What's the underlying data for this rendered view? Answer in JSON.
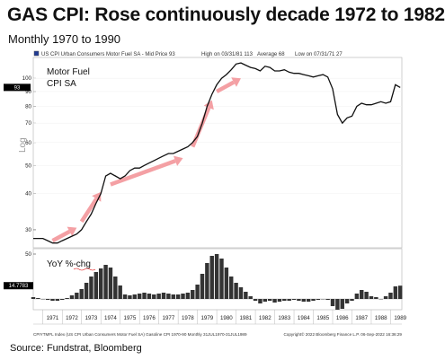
{
  "title": "GAS CPI: Rose continuously decade 1972 to 1982",
  "subtitle": "Monthly 1970 to 1990",
  "source": "Source: Fundstrat, Bloomberg",
  "header": {
    "series": "US CPI Urban Consumers Motor Fuel SA - Mid Price 93",
    "high": "High on 03/31/81 113",
    "average": "Average 68",
    "low": "Low on 07/31/71 27"
  },
  "footer": {
    "left": "CPIYTMFL Index (US CPI Urban Consumers Motor Fuel SA) Gasoline CPI 1970-90 Monthly 31JUL1970-31JUL1989",
    "right": "Copyright© 2022 Bloomberg Finance L.P.      06-Sep-2022 16:36:29"
  },
  "colors": {
    "line": "#111111",
    "arrow": "#f4a0a4",
    "header_square": "#1f3a93",
    "badge": "#000000"
  },
  "chart_data": [
    {
      "type": "line",
      "panel_label": [
        "Motor Fuel",
        "CPI SA"
      ],
      "ylabel": "Log",
      "log_scale": true,
      "ylim": [
        26,
        118
      ],
      "yticks": [
        30,
        40,
        50,
        60,
        70,
        80,
        90,
        100
      ],
      "last_value_badge": "93",
      "x": [
        "1970-07",
        "1970-10",
        "1971-01",
        "1971-04",
        "1971-07",
        "1971-10",
        "1972-01",
        "1972-04",
        "1972-07",
        "1972-10",
        "1973-01",
        "1973-04",
        "1973-07",
        "1973-10",
        "1974-01",
        "1974-04",
        "1974-07",
        "1974-10",
        "1975-01",
        "1975-04",
        "1975-07",
        "1975-10",
        "1976-01",
        "1976-04",
        "1976-07",
        "1976-10",
        "1977-01",
        "1977-04",
        "1977-07",
        "1977-10",
        "1978-01",
        "1978-04",
        "1978-07",
        "1978-10",
        "1979-01",
        "1979-04",
        "1979-07",
        "1979-10",
        "1980-01",
        "1980-04",
        "1980-07",
        "1980-10",
        "1981-01",
        "1981-04",
        "1981-07",
        "1981-10",
        "1982-01",
        "1982-04",
        "1982-07",
        "1982-10",
        "1983-01",
        "1983-04",
        "1983-07",
        "1983-10",
        "1984-01",
        "1984-04",
        "1984-07",
        "1984-10",
        "1985-01",
        "1985-04",
        "1985-07",
        "1985-10",
        "1986-01",
        "1986-04",
        "1986-07",
        "1986-10",
        "1987-01",
        "1987-04",
        "1987-07",
        "1987-10",
        "1988-01",
        "1988-04",
        "1988-07",
        "1988-10",
        "1989-01",
        "1989-04",
        "1989-07"
      ],
      "series": [
        {
          "values": [
            28,
            28,
            28,
            27.5,
            27,
            27,
            27.5,
            28,
            28.5,
            29,
            30,
            32,
            34,
            37,
            40,
            46,
            47,
            46,
            45,
            46,
            48,
            49,
            49,
            50,
            51,
            52,
            53,
            54,
            55,
            55,
            56,
            57,
            58,
            60,
            63,
            70,
            80,
            88,
            95,
            100,
            103,
            107,
            112,
            113,
            111,
            109,
            108,
            106,
            110,
            109,
            106,
            106,
            107,
            105,
            104,
            104,
            103,
            102,
            101,
            102,
            103,
            101,
            92,
            75,
            70,
            73,
            74,
            80,
            82,
            81,
            81,
            82,
            83,
            82,
            83,
            95,
            93
          ]
        }
      ],
      "annotations": [
        {
          "type": "arrow",
          "from": [
            "1971-07",
            27.5
          ],
          "to": [
            "1972-10",
            30.5
          ]
        },
        {
          "type": "arrow",
          "from": [
            "1973-01",
            32
          ],
          "to": [
            "1974-01",
            40.5
          ]
        },
        {
          "type": "arrow",
          "from": [
            "1974-07",
            43
          ],
          "to": [
            "1978-04",
            53
          ]
        },
        {
          "type": "arrow",
          "from": [
            "1978-10",
            58
          ],
          "to": [
            "1979-10",
            84
          ]
        },
        {
          "type": "arrow",
          "from": [
            "1980-01",
            90
          ],
          "to": [
            "1981-04",
            100
          ]
        }
      ]
    },
    {
      "type": "bar",
      "panel_label": "YoY %-chg",
      "ylim": [
        -12,
        56
      ],
      "yticks": [
        50
      ],
      "last_value_badge": "14.7783",
      "xlim": [
        "1970-07",
        "1989-08"
      ],
      "xticks": [
        "1971",
        "1972",
        "1973",
        "1974",
        "1975",
        "1976",
        "1977",
        "1978",
        "1979",
        "1980",
        "1981",
        "1982",
        "1983",
        "1984",
        "1985",
        "1986",
        "1987",
        "1988",
        "1989"
      ],
      "x": [
        "1970-07",
        "1970-10",
        "1971-01",
        "1971-04",
        "1971-07",
        "1971-10",
        "1972-01",
        "1972-04",
        "1972-07",
        "1972-10",
        "1973-01",
        "1973-04",
        "1973-07",
        "1973-10",
        "1974-01",
        "1974-04",
        "1974-07",
        "1974-10",
        "1975-01",
        "1975-04",
        "1975-07",
        "1975-10",
        "1976-01",
        "1976-04",
        "1976-07",
        "1976-10",
        "1977-01",
        "1977-04",
        "1977-07",
        "1977-10",
        "1978-01",
        "1978-04",
        "1978-07",
        "1978-10",
        "1979-01",
        "1979-04",
        "1979-07",
        "1979-10",
        "1980-01",
        "1980-04",
        "1980-07",
        "1980-10",
        "1981-01",
        "1981-04",
        "1981-07",
        "1981-10",
        "1982-01",
        "1982-04",
        "1982-07",
        "1982-10",
        "1983-01",
        "1983-04",
        "1983-07",
        "1983-10",
        "1984-01",
        "1984-04",
        "1984-07",
        "1984-10",
        "1985-01",
        "1985-04",
        "1985-07",
        "1985-10",
        "1986-01",
        "1986-04",
        "1986-07",
        "1986-10",
        "1987-01",
        "1987-04",
        "1987-07",
        "1987-10",
        "1988-01",
        "1988-04",
        "1988-07",
        "1988-10",
        "1989-01",
        "1989-04",
        "1989-07"
      ],
      "values": [
        2,
        1,
        0,
        -1,
        -2,
        -2,
        -1,
        1,
        4,
        7,
        11,
        18,
        25,
        30,
        34,
        38,
        35,
        25,
        15,
        5,
        4,
        5,
        6,
        7,
        6,
        5,
        6,
        7,
        6,
        5,
        5,
        6,
        7,
        10,
        16,
        28,
        40,
        48,
        50,
        45,
        35,
        25,
        18,
        13,
        8,
        3,
        -2,
        -5,
        -3,
        -2,
        -4,
        -3,
        -2,
        -2,
        -1,
        -2,
        -3,
        -3,
        -2,
        -1,
        0,
        -1,
        -8,
        -12,
        -11,
        -5,
        -2,
        6,
        10,
        8,
        3,
        2,
        0,
        3,
        7,
        14,
        14.8
      ]
    }
  ]
}
